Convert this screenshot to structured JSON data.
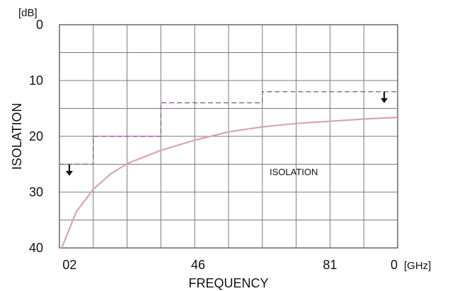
{
  "chart_data": {
    "type": "line",
    "xlabel": "FREQUENCY",
    "ylabel": "ISOLATION",
    "y_unit": "[dB]",
    "x_unit": "[GHz]",
    "x_ticks": [
      "02",
      "46",
      "81",
      "0"
    ],
    "y_ticks": [
      "0",
      "10",
      "20",
      "30",
      "40"
    ],
    "y_inverted": true,
    "ylim": [
      0,
      40
    ],
    "grid": true,
    "annotations": [
      {
        "text": "ISOLATION"
      }
    ],
    "series": [
      {
        "role": "curve",
        "color": "#d8a6ad",
        "x": [
          0.0,
          0.5,
          1.0,
          1.5,
          2.0,
          3.0,
          4.0,
          5.0,
          6.0,
          7.0,
          8.0,
          9.0,
          10.0
        ],
        "values": [
          41.0,
          33.5,
          29.5,
          26.8,
          24.9,
          22.5,
          20.7,
          19.2,
          18.3,
          17.7,
          17.3,
          16.9,
          16.6
        ]
      },
      {
        "role": "spec-limit",
        "color": "#8e5a9a",
        "x": [
          0.0,
          1.0,
          1.0,
          3.0,
          3.0,
          6.0,
          6.0,
          10.0
        ],
        "values": [
          25.0,
          25.0,
          20.0,
          20.0,
          14.0,
          14.0,
          12.0,
          12.0
        ]
      }
    ]
  }
}
